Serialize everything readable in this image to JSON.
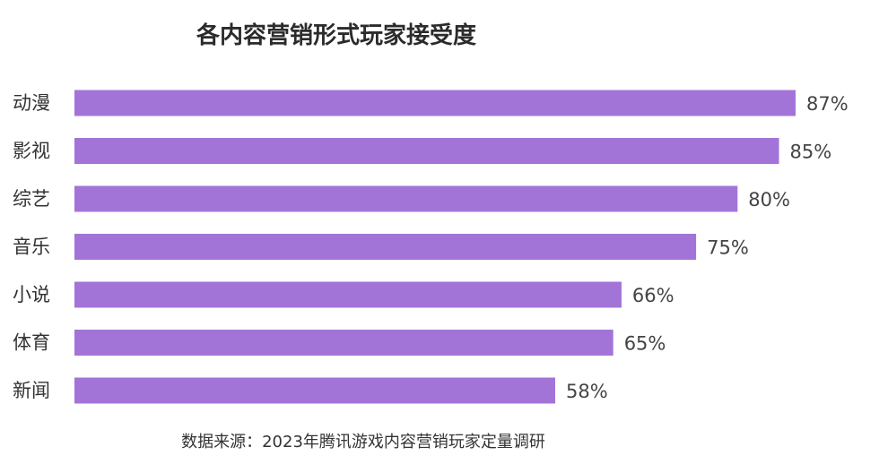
{
  "chart_data": {
    "type": "bar",
    "orientation": "horizontal",
    "title": "各内容营销形式玩家接受度",
    "categories": [
      "动漫",
      "影视",
      "综艺",
      "音乐",
      "小说",
      "体育",
      "新闻"
    ],
    "values": [
      87,
      85,
      80,
      75,
      66,
      65,
      58
    ],
    "value_labels": [
      "87%",
      "85%",
      "80%",
      "75%",
      "66%",
      "65%",
      "58%"
    ],
    "unit": "%",
    "bar_color": "#a374d7",
    "xlim": [
      0,
      87
    ],
    "grid": false,
    "legend": "none"
  },
  "source_note": "数据来源：2023年腾讯游戏内容营销玩家定量调研"
}
